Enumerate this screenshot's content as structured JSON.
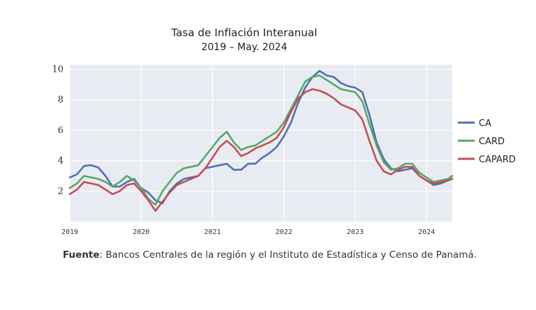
{
  "title": "Tasa de Inflación Interanual",
  "subtitle": "2019 – May. 2024",
  "source": {
    "label": "Fuente",
    "text": ": Bancos Centrales de la región y el Instituto de Estadística y Censo de Panamá."
  },
  "chart_data": {
    "type": "line",
    "title": "Tasa de Inflación Interanual",
    "subtitle": "2019 – May. 2024",
    "xlabel": "",
    "ylabel": "",
    "x_range": [
      2019.0,
      2024.36
    ],
    "ylim": [
      0,
      10.3
    ],
    "y_ticks": [
      2,
      4,
      6,
      8,
      10
    ],
    "x_ticks": [
      "2019",
      "2020",
      "2021",
      "2022",
      "2023",
      "2024"
    ],
    "grid": true,
    "legend_position": "right",
    "background": "#e9ebf3",
    "series": [
      {
        "name": "CA",
        "color": "#4c72b0",
        "x": [
          2019.0,
          2019.1,
          2019.2,
          2019.3,
          2019.4,
          2019.5,
          2019.6,
          2019.7,
          2019.8,
          2019.9,
          2020.0,
          2020.1,
          2020.2,
          2020.3,
          2020.4,
          2020.5,
          2020.6,
          2020.7,
          2020.8,
          2020.9,
          2021.0,
          2021.1,
          2021.2,
          2021.3,
          2021.4,
          2021.5,
          2021.6,
          2021.7,
          2021.8,
          2021.9,
          2022.0,
          2022.1,
          2022.2,
          2022.3,
          2022.4,
          2022.5,
          2022.6,
          2022.7,
          2022.8,
          2022.9,
          2023.0,
          2023.1,
          2023.2,
          2023.3,
          2023.4,
          2023.5,
          2023.6,
          2023.7,
          2023.8,
          2023.9,
          2024.0,
          2024.1,
          2024.2,
          2024.3,
          2024.36
        ],
        "values": [
          2.9,
          3.1,
          3.65,
          3.7,
          3.55,
          3.0,
          2.3,
          2.3,
          2.6,
          2.8,
          2.2,
          1.9,
          1.4,
          1.2,
          2.0,
          2.5,
          2.8,
          2.9,
          3.0,
          3.5,
          3.6,
          3.7,
          3.8,
          3.4,
          3.4,
          3.8,
          3.8,
          4.2,
          4.5,
          4.9,
          5.6,
          6.5,
          7.8,
          8.8,
          9.5,
          9.9,
          9.6,
          9.5,
          9.1,
          8.9,
          8.8,
          8.5,
          7.0,
          5.2,
          4.1,
          3.5,
          3.3,
          3.4,
          3.5,
          3.0,
          2.7,
          2.4,
          2.5,
          2.7,
          2.8
        ]
      },
      {
        "name": "CARD",
        "color": "#55a868",
        "x": [
          2019.0,
          2019.1,
          2019.2,
          2019.3,
          2019.4,
          2019.5,
          2019.6,
          2019.7,
          2019.8,
          2019.9,
          2020.0,
          2020.1,
          2020.2,
          2020.3,
          2020.4,
          2020.5,
          2020.6,
          2020.7,
          2020.8,
          2020.9,
          2021.0,
          2021.1,
          2021.2,
          2021.3,
          2021.4,
          2021.5,
          2021.6,
          2021.7,
          2021.8,
          2021.9,
          2022.0,
          2022.1,
          2022.2,
          2022.3,
          2022.4,
          2022.5,
          2022.6,
          2022.7,
          2022.8,
          2022.9,
          2023.0,
          2023.1,
          2023.2,
          2023.3,
          2023.4,
          2023.5,
          2023.6,
          2023.7,
          2023.8,
          2023.9,
          2024.0,
          2024.1,
          2024.2,
          2024.3,
          2024.36
        ],
        "values": [
          2.2,
          2.5,
          3.0,
          2.9,
          2.8,
          2.6,
          2.3,
          2.6,
          3.0,
          2.7,
          2.2,
          1.5,
          1.1,
          2.0,
          2.6,
          3.2,
          3.5,
          3.6,
          3.7,
          4.3,
          4.9,
          5.5,
          5.9,
          5.2,
          4.7,
          4.9,
          5.0,
          5.3,
          5.6,
          5.9,
          6.5,
          7.4,
          8.3,
          9.2,
          9.5,
          9.6,
          9.3,
          9.0,
          8.7,
          8.6,
          8.5,
          7.9,
          6.4,
          5.0,
          3.9,
          3.4,
          3.5,
          3.8,
          3.8,
          3.2,
          2.9,
          2.6,
          2.7,
          2.8,
          3.0
        ]
      },
      {
        "name": "CAPARD",
        "color": "#c44e52",
        "x": [
          2019.0,
          2019.1,
          2019.2,
          2019.3,
          2019.4,
          2019.5,
          2019.6,
          2019.7,
          2019.8,
          2019.9,
          2020.0,
          2020.1,
          2020.2,
          2020.3,
          2020.4,
          2020.5,
          2020.6,
          2020.7,
          2020.8,
          2020.9,
          2021.0,
          2021.1,
          2021.2,
          2021.3,
          2021.4,
          2021.5,
          2021.6,
          2021.7,
          2021.8,
          2021.9,
          2022.0,
          2022.1,
          2022.2,
          2022.3,
          2022.4,
          2022.5,
          2022.6,
          2022.7,
          2022.8,
          2022.9,
          2023.0,
          2023.1,
          2023.2,
          2023.3,
          2023.4,
          2023.5,
          2023.6,
          2023.7,
          2023.8,
          2023.9,
          2024.0,
          2024.1,
          2024.2,
          2024.3,
          2024.36
        ],
        "values": [
          1.8,
          2.1,
          2.6,
          2.5,
          2.4,
          2.1,
          1.8,
          2.0,
          2.4,
          2.5,
          2.0,
          1.4,
          0.7,
          1.3,
          1.9,
          2.4,
          2.6,
          2.8,
          3.0,
          3.5,
          4.2,
          4.9,
          5.3,
          4.9,
          4.3,
          4.5,
          4.8,
          5.0,
          5.2,
          5.5,
          6.2,
          7.2,
          8.1,
          8.5,
          8.7,
          8.6,
          8.4,
          8.1,
          7.7,
          7.5,
          7.3,
          6.7,
          5.3,
          4.0,
          3.3,
          3.1,
          3.4,
          3.6,
          3.6,
          3.0,
          2.7,
          2.5,
          2.6,
          2.7,
          2.8
        ]
      }
    ]
  }
}
